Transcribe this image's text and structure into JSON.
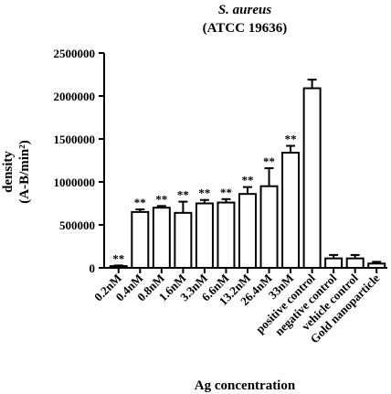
{
  "chart_data": {
    "type": "bar",
    "title": "S. aureus",
    "subtitle": "(ATCC 19636)",
    "ylabel": [
      "density",
      "(A-B/min²)"
    ],
    "xlabel": "Ag concentration",
    "ylim": [
      0,
      2500000
    ],
    "yticks": [
      0,
      500000,
      1000000,
      1500000,
      2000000,
      2500000
    ],
    "ytick_labels": [
      "0",
      "500000",
      "1000000",
      "1500000",
      "2000000",
      "2500000"
    ],
    "grid": false,
    "bar_fill": "#ffffff",
    "bar_stroke": "#000000",
    "categories": [
      "0.2nM",
      "0.4nM",
      "0.8nM",
      "1.6nM",
      "3.3nM",
      "6.6nM",
      "13.2nM",
      "26.4nM",
      "33nM",
      "positive control",
      "negative control",
      "vehicle control",
      "Gold nanoparticle"
    ],
    "values": [
      20000,
      650000,
      700000,
      640000,
      750000,
      760000,
      860000,
      950000,
      1340000,
      2090000,
      110000,
      110000,
      50000
    ],
    "errors": [
      8000,
      30000,
      20000,
      130000,
      40000,
      40000,
      80000,
      210000,
      80000,
      100000,
      40000,
      40000,
      20000
    ],
    "annotations": [
      "**",
      "**",
      "**",
      "**",
      "**",
      "**",
      "**",
      "**",
      "**",
      "",
      "",
      "",
      ""
    ]
  }
}
